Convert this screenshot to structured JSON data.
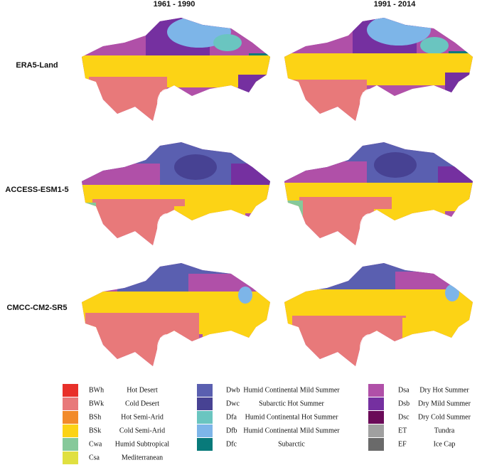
{
  "columns": [
    "1961 - 1990",
    "1991 - 2014"
  ],
  "rows": [
    "ERA5-Land",
    "ACCESS-ESM1-5",
    "CMCC-CM2-SR5"
  ],
  "legend": [
    {
      "code": "BWh",
      "name": "Hot Desert",
      "color": "#e8302a"
    },
    {
      "code": "BWk",
      "name": "Cold Desert",
      "color": "#e8797a"
    },
    {
      "code": "BSh",
      "name": "Hot Semi-Arid",
      "color": "#f28a2a"
    },
    {
      "code": "BSk",
      "name": "Cold Semi-Arid",
      "color": "#fcd315"
    },
    {
      "code": "Cwa",
      "name": "Humid Subtropical",
      "color": "#86c99a"
    },
    {
      "code": "Csa",
      "name": "Mediterranean",
      "color": "#e0e040"
    },
    {
      "code": "Dwb",
      "name": "Humid Continental Mild Summer",
      "color": "#5a5fb0"
    },
    {
      "code": "Dwc",
      "name": "Subarctic Hot Summer",
      "color": "#474293"
    },
    {
      "code": "Dfa",
      "name": "Humid Continental Hot Summer",
      "color": "#6ac5c0"
    },
    {
      "code": "Dfb",
      "name": "Humid Continental Mild Summer",
      "color": "#7db5e8"
    },
    {
      "code": "Dfc",
      "name": "Subarctic",
      "color": "#087a7a"
    },
    {
      "code": "Dsa",
      "name": "Dry Hot Summer",
      "color": "#b050a8"
    },
    {
      "code": "Dsb",
      "name": "Dry Mild Summer",
      "color": "#7530a0"
    },
    {
      "code": "Dsc",
      "name": "Dry Cold Summer",
      "color": "#6a0a58"
    },
    {
      "code": "ET",
      "name": "Tundra",
      "color": "#a0a0a0"
    },
    {
      "code": "EF",
      "name": "Ice Cap",
      "color": "#6a6a6a"
    }
  ]
}
